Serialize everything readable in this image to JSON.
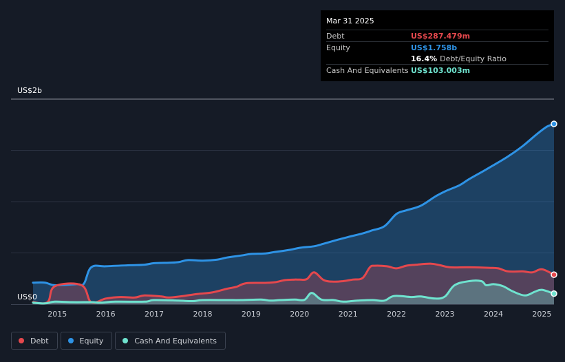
{
  "tooltip": {
    "date": "Mar 31 2025",
    "debt_label": "Debt",
    "debt_value": "US$287.479m",
    "equity_label": "Equity",
    "equity_value": "US$1.758b",
    "ratio_value": "16.4%",
    "ratio_label": "Debt/Equity Ratio",
    "cash_label": "Cash And Equivalents",
    "cash_value": "US$103.003m"
  },
  "legend": [
    {
      "label": "Debt",
      "color": "#e5484d"
    },
    {
      "label": "Equity",
      "color": "#2e93e6"
    },
    {
      "label": "Cash And Equivalents",
      "color": "#6fe3cf"
    }
  ],
  "chart_data": {
    "type": "area",
    "title": "",
    "ylabel_top": "US$2b",
    "ylabel_bottom": "US$0",
    "ylim": [
      0,
      2000
    ],
    "xlim": [
      2014.5,
      2025.25
    ],
    "x_ticks": [
      "2015",
      "2016",
      "2017",
      "2018",
      "2019",
      "2020",
      "2021",
      "2022",
      "2023",
      "2024",
      "2025"
    ],
    "colors": {
      "debt": "#e5484d",
      "equity": "#2e93e6",
      "cash": "#6fe3cf"
    },
    "series": [
      {
        "name": "Debt",
        "points": [
          [
            2014.5,
            20
          ],
          [
            2014.8,
            20
          ],
          [
            2014.95,
            175
          ],
          [
            2015.5,
            185
          ],
          [
            2015.7,
            20
          ],
          [
            2016.0,
            55
          ],
          [
            2016.3,
            70
          ],
          [
            2016.6,
            65
          ],
          [
            2016.8,
            85
          ],
          [
            2017.15,
            75
          ],
          [
            2017.3,
            65
          ],
          [
            2017.6,
            80
          ],
          [
            2017.9,
            100
          ],
          [
            2018.2,
            115
          ],
          [
            2018.5,
            150
          ],
          [
            2018.7,
            170
          ],
          [
            2018.9,
            205
          ],
          [
            2019.3,
            208
          ],
          [
            2019.5,
            215
          ],
          [
            2019.7,
            235
          ],
          [
            2019.9,
            240
          ],
          [
            2020.0,
            240
          ],
          [
            2020.15,
            245
          ],
          [
            2020.3,
            310
          ],
          [
            2020.5,
            235
          ],
          [
            2020.7,
            220
          ],
          [
            2020.9,
            225
          ],
          [
            2021.1,
            240
          ],
          [
            2021.3,
            255
          ],
          [
            2021.45,
            360
          ],
          [
            2021.55,
            375
          ],
          [
            2021.8,
            370
          ],
          [
            2022.0,
            350
          ],
          [
            2022.2,
            375
          ],
          [
            2022.4,
            385
          ],
          [
            2022.7,
            395
          ],
          [
            2022.9,
            380
          ],
          [
            2023.1,
            360
          ],
          [
            2023.5,
            360
          ],
          [
            2023.9,
            355
          ],
          [
            2024.1,
            350
          ],
          [
            2024.3,
            320
          ],
          [
            2024.6,
            320
          ],
          [
            2024.8,
            310
          ],
          [
            2025.0,
            340
          ],
          [
            2025.25,
            287.5
          ]
        ]
      },
      {
        "name": "Equity",
        "points": [
          [
            2014.5,
            210
          ],
          [
            2014.75,
            210
          ],
          [
            2014.95,
            185
          ],
          [
            2015.4,
            195
          ],
          [
            2015.55,
            200
          ],
          [
            2015.7,
            360
          ],
          [
            2016.0,
            370
          ],
          [
            2016.5,
            380
          ],
          [
            2016.8,
            385
          ],
          [
            2017.0,
            400
          ],
          [
            2017.3,
            405
          ],
          [
            2017.5,
            410
          ],
          [
            2017.7,
            430
          ],
          [
            2018.0,
            425
          ],
          [
            2018.3,
            435
          ],
          [
            2018.5,
            455
          ],
          [
            2018.8,
            475
          ],
          [
            2019.0,
            490
          ],
          [
            2019.3,
            495
          ],
          [
            2019.5,
            510
          ],
          [
            2019.8,
            530
          ],
          [
            2020.0,
            550
          ],
          [
            2020.3,
            565
          ],
          [
            2020.5,
            590
          ],
          [
            2020.8,
            630
          ],
          [
            2021.0,
            655
          ],
          [
            2021.3,
            690
          ],
          [
            2021.5,
            720
          ],
          [
            2021.75,
            760
          ],
          [
            2022.0,
            880
          ],
          [
            2022.2,
            915
          ],
          [
            2022.5,
            960
          ],
          [
            2022.8,
            1050
          ],
          [
            2023.0,
            1100
          ],
          [
            2023.3,
            1160
          ],
          [
            2023.5,
            1220
          ],
          [
            2023.8,
            1300
          ],
          [
            2024.0,
            1355
          ],
          [
            2024.3,
            1440
          ],
          [
            2024.6,
            1540
          ],
          [
            2024.9,
            1660
          ],
          [
            2025.1,
            1730
          ],
          [
            2025.25,
            1758
          ]
        ]
      },
      {
        "name": "Cash And Equivalents",
        "points": [
          [
            2014.5,
            15
          ],
          [
            2014.75,
            8
          ],
          [
            2014.95,
            25
          ],
          [
            2015.3,
            20
          ],
          [
            2015.7,
            20
          ],
          [
            2015.9,
            15
          ],
          [
            2016.2,
            25
          ],
          [
            2016.8,
            25
          ],
          [
            2017.0,
            40
          ],
          [
            2017.5,
            35
          ],
          [
            2017.8,
            30
          ],
          [
            2018.0,
            40
          ],
          [
            2018.5,
            40
          ],
          [
            2018.8,
            40
          ],
          [
            2019.2,
            45
          ],
          [
            2019.4,
            35
          ],
          [
            2019.6,
            40
          ],
          [
            2019.9,
            45
          ],
          [
            2020.1,
            42
          ],
          [
            2020.25,
            110
          ],
          [
            2020.45,
            45
          ],
          [
            2020.7,
            40
          ],
          [
            2020.9,
            25
          ],
          [
            2021.2,
            35
          ],
          [
            2021.5,
            40
          ],
          [
            2021.75,
            35
          ],
          [
            2021.95,
            80
          ],
          [
            2022.3,
            70
          ],
          [
            2022.5,
            75
          ],
          [
            2022.8,
            55
          ],
          [
            2023.0,
            75
          ],
          [
            2023.2,
            185
          ],
          [
            2023.5,
            225
          ],
          [
            2023.75,
            225
          ],
          [
            2023.85,
            185
          ],
          [
            2024.0,
            195
          ],
          [
            2024.2,
            175
          ],
          [
            2024.4,
            125
          ],
          [
            2024.65,
            85
          ],
          [
            2024.85,
            120
          ],
          [
            2025.0,
            140
          ],
          [
            2025.25,
            103
          ]
        ]
      }
    ]
  }
}
